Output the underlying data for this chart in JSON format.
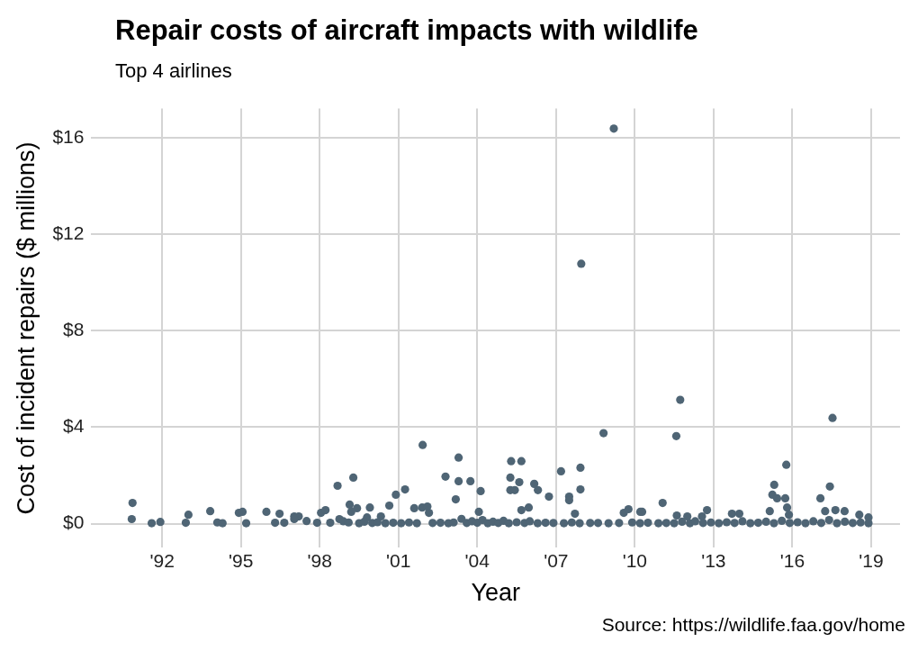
{
  "chart_data": {
    "type": "scatter",
    "title": "Repair costs of aircraft impacts with wildlife",
    "subtitle": "Top 4 airlines",
    "xlabel": "Year",
    "ylabel": "Cost of incident repairs ($ millions)",
    "annotations": [
      "Source: https://wildlife.faa.gov/home"
    ],
    "series": [
      {
        "color": "#4f6575",
        "x": [
          2009.2,
          2007.96,
          2008.81,
          2011.73,
          2011.58,
          2017.53,
          2015.77,
          2001.92,
          2003.29,
          2002.79,
          2003.29,
          2003.74,
          2003.18,
          2004.13,
          2005.29,
          2005.68,
          2005.26,
          2005.6,
          2005.26,
          2005.43,
          2006.17,
          2006.31,
          2006.73,
          2007.19,
          2007.93,
          2007.5,
          2007.5,
          2007.93,
          2000.9,
          2001.25,
          2000.65,
          2001.6,
          2001.9,
          2002.1,
          2002.16,
          2004.06,
          2005.68,
          2005.96,
          2007.72,
          2009.58,
          2009.76,
          2010.21,
          1990.87,
          1990.84,
          1991.93,
          1992.9,
          1993.0,
          1993.83,
          1994.92,
          1995.06,
          1995.97,
          1996.47,
          1997.03,
          1997.2,
          1997.03,
          1997.5,
          1998.05,
          1998.22,
          1998.68,
          1999.28,
          1999.14,
          1999.42,
          1999.2,
          1999.91,
          1998.75,
          1999.8,
          2000.33,
          2015.31,
          2015.24,
          2015.42,
          2015.73,
          2015.8,
          2017.43,
          2017.07,
          2017.25,
          2017.64,
          2017.99,
          2011.06,
          2012.75,
          2013.7,
          2013.98,
          2015.14,
          2015.87,
          2011.6,
          2012.0,
          2012.56,
          2018.55,
          2018.9,
          2010.28,
          1991.6,
          1994.1,
          1994.3,
          1995.2,
          1996.3,
          1996.65,
          1997.9,
          1998.4,
          1998.9,
          1999.1,
          1999.5,
          1999.7,
          2000.0,
          2000.2,
          2000.5,
          2000.8,
          2001.1,
          2001.4,
          2001.7,
          2002.3,
          2002.6,
          2002.9,
          2003.1,
          2003.4,
          2003.6,
          2003.8,
          2004.0,
          2004.2,
          2004.4,
          2004.6,
          2004.8,
          2005.0,
          2005.2,
          2005.5,
          2005.8,
          2006.0,
          2006.3,
          2006.6,
          2006.9,
          2007.3,
          2007.6,
          2007.9,
          2008.3,
          2008.6,
          2009.0,
          2009.4,
          2009.9,
          2010.2,
          2010.5,
          2010.9,
          2011.2,
          2011.5,
          2011.8,
          2012.1,
          2012.3,
          2012.6,
          2012.9,
          2013.2,
          2013.5,
          2013.8,
          2014.1,
          2014.4,
          2014.7,
          2015.0,
          2015.3,
          2015.6,
          2015.9,
          2016.2,
          2016.5,
          2016.8,
          2017.1,
          2017.4,
          2017.7,
          2018.0,
          2018.3,
          2018.6,
          2018.9
        ],
        "values": [
          16.37,
          10.77,
          3.75,
          5.13,
          3.63,
          4.38,
          2.44,
          3.26,
          2.74,
          1.95,
          1.76,
          1.76,
          1.01,
          1.35,
          2.59,
          2.59,
          1.91,
          1.72,
          1.39,
          1.39,
          1.65,
          1.39,
          1.12,
          2.17,
          2.32,
          1.12,
          0.97,
          1.42,
          1.2,
          1.42,
          0.75,
          0.64,
          0.67,
          0.71,
          0.45,
          0.49,
          0.56,
          0.67,
          0.41,
          0.45,
          0.6,
          0.49,
          0.86,
          0.19,
          0.07,
          0.04,
          0.37,
          0.52,
          0.45,
          0.49,
          0.49,
          0.41,
          0.3,
          0.3,
          0.19,
          0.11,
          0.45,
          0.56,
          1.57,
          1.91,
          0.79,
          0.64,
          0.49,
          0.67,
          0.19,
          0.26,
          0.3,
          1.61,
          1.2,
          1.05,
          1.05,
          0.67,
          1.54,
          1.05,
          0.52,
          0.56,
          0.52,
          0.86,
          0.56,
          0.41,
          0.41,
          0.52,
          0.37,
          0.34,
          0.3,
          0.3,
          0.37,
          0.26,
          0.49,
          0.02,
          0.05,
          0.02,
          0.02,
          0.04,
          0.04,
          0.04,
          0.04,
          0.1,
          0.05,
          0.02,
          0.08,
          0.03,
          0.06,
          0.02,
          0.04,
          0.02,
          0.05,
          0.02,
          0.03,
          0.04,
          0.02,
          0.05,
          0.2,
          0.03,
          0.1,
          0.04,
          0.15,
          0.02,
          0.08,
          0.03,
          0.12,
          0.02,
          0.06,
          0.03,
          0.1,
          0.02,
          0.04,
          0.03,
          0.02,
          0.05,
          0.02,
          0.03,
          0.03,
          0.02,
          0.03,
          0.05,
          0.02,
          0.04,
          0.02,
          0.03,
          0.02,
          0.08,
          0.02,
          0.1,
          0.03,
          0.05,
          0.02,
          0.06,
          0.03,
          0.1,
          0.02,
          0.04,
          0.08,
          0.02,
          0.12,
          0.03,
          0.06,
          0.02,
          0.1,
          0.03,
          0.15,
          0.02,
          0.08,
          0.03,
          0.05,
          0.02
        ]
      }
    ],
    "xlim": [
      1989.3,
      2020.1
    ],
    "ylim": [
      -1,
      17.2
    ],
    "xticks": [
      {
        "value": 1992,
        "label": "'92"
      },
      {
        "value": 1995,
        "label": "'95"
      },
      {
        "value": 1998,
        "label": "'98"
      },
      {
        "value": 2001,
        "label": "'01"
      },
      {
        "value": 2004,
        "label": "'04"
      },
      {
        "value": 2007,
        "label": "'07"
      },
      {
        "value": 2010,
        "label": "'10"
      },
      {
        "value": 2013,
        "label": "'13"
      },
      {
        "value": 2016,
        "label": "'16"
      },
      {
        "value": 2019,
        "label": "'19"
      }
    ],
    "yticks": [
      {
        "value": 0,
        "label": "$0"
      },
      {
        "value": 4,
        "label": "$4"
      },
      {
        "value": 8,
        "label": "$8"
      },
      {
        "value": 12,
        "label": "$12"
      },
      {
        "value": 16,
        "label": "$16"
      }
    ],
    "grid": true,
    "marker": "circle"
  }
}
